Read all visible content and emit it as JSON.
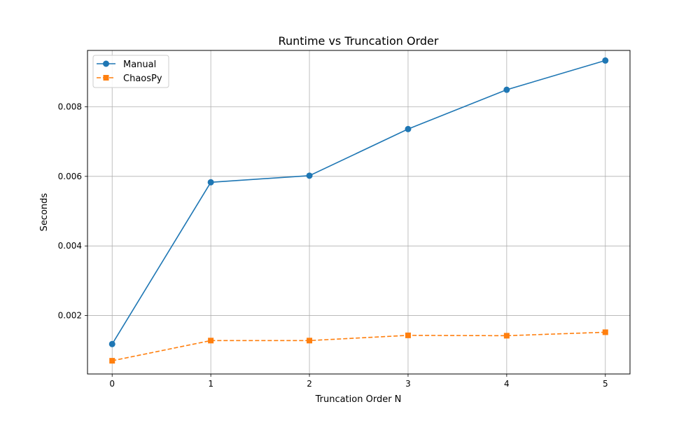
{
  "chart_data": {
    "type": "line",
    "title": "Runtime vs Truncation Order",
    "xlabel": "Truncation Order N",
    "ylabel": "Seconds",
    "x": [
      0,
      1,
      2,
      3,
      4,
      5
    ],
    "xlim": [
      -0.25,
      5.25
    ],
    "ylim": [
      0.00032,
      0.00962
    ],
    "xticks": [
      0,
      1,
      2,
      3,
      4,
      5
    ],
    "xtick_labels": [
      "0",
      "1",
      "2",
      "3",
      "4",
      "5"
    ],
    "yticks": [
      0.002,
      0.004,
      0.006,
      0.008
    ],
    "ytick_labels": [
      "0.002",
      "0.004",
      "0.006",
      "0.008"
    ],
    "grid": true,
    "legend_position": "top-left",
    "series": [
      {
        "name": "Manual",
        "values": [
          0.00118,
          0.00583,
          0.00602,
          0.00736,
          0.00849,
          0.00933
        ],
        "color": "#1f77b4",
        "marker": "circle",
        "linestyle": "solid"
      },
      {
        "name": "ChaosPy",
        "values": [
          0.0007,
          0.00128,
          0.00128,
          0.00143,
          0.00142,
          0.00152
        ],
        "color": "#ff7f0e",
        "marker": "square",
        "linestyle": "dashed"
      }
    ]
  }
}
